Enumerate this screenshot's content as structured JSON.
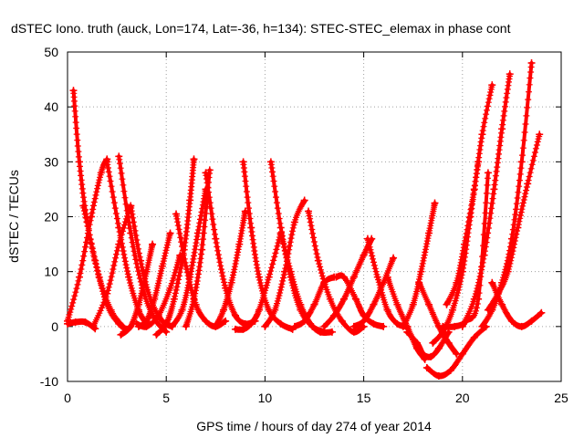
{
  "chart_data": {
    "type": "scatter",
    "title": "dSTEC Iono. truth (auck, Lon=174, Lat=-36, h=134): STEC-STEC_elemax in phase cont",
    "xlabel": "GPS time / hours of day 274 of year 2014",
    "ylabel": "dSTEC  / TECUs",
    "xlim": [
      0,
      25
    ],
    "ylim": [
      -10,
      50
    ],
    "xticks": [
      "0",
      "5",
      "10",
      "15",
      "20",
      "25"
    ],
    "yticks": [
      "-10",
      "0",
      "10",
      "20",
      "30",
      "40",
      "50"
    ],
    "grid": true,
    "marker": "+",
    "color": "#ff0000",
    "arcs": [
      {
        "x": [
          0.0,
          0.4,
          0.9,
          1.4
        ],
        "y": [
          0.5,
          0.8,
          0.8,
          -0.4
        ]
      },
      {
        "x": [
          0.3,
          0.6,
          1.0,
          1.6,
          2.2,
          2.8
        ],
        "y": [
          43,
          30,
          19,
          9,
          3,
          0
        ]
      },
      {
        "x": [
          0.0,
          0.6,
          1.2,
          1.7,
          2.0
        ],
        "y": [
          1,
          9,
          20,
          28,
          30.5
        ]
      },
      {
        "x": [
          0.8,
          1.4,
          2.0,
          2.6,
          3.0
        ],
        "y": [
          22,
          12,
          4,
          0.5,
          -0.5
        ]
      },
      {
        "x": [
          1.3,
          2.0,
          2.6,
          3.2
        ],
        "y": [
          0,
          6,
          15,
          22
        ]
      },
      {
        "x": [
          2.0,
          2.6,
          3.1,
          3.6,
          4.0
        ],
        "y": [
          30,
          18,
          9,
          3,
          0.5
        ]
      },
      {
        "x": [
          2.6,
          3.2,
          3.8,
          4.4,
          5.0
        ],
        "y": [
          31,
          17,
          7,
          1.5,
          -1
        ]
      },
      {
        "x": [
          2.7,
          3.2,
          3.6,
          4.0,
          4.3
        ],
        "y": [
          -1.5,
          0,
          4,
          10,
          15
        ]
      },
      {
        "x": [
          3.2,
          3.7,
          4.2,
          4.8,
          5.3
        ],
        "y": [
          22,
          12,
          5,
          1,
          0
        ]
      },
      {
        "x": [
          3.6,
          4.0,
          4.4,
          4.8,
          5.2
        ],
        "y": [
          0,
          1,
          5,
          11,
          17
        ]
      },
      {
        "x": [
          3.5,
          4.0,
          4.6,
          5.2,
          5.7
        ],
        "y": [
          0.5,
          0,
          2,
          7,
          13
        ]
      },
      {
        "x": [
          4.5,
          5.0,
          5.4,
          5.9,
          6.2,
          6.4
        ],
        "y": [
          -1.5,
          0.5,
          5,
          14,
          23,
          30.5
        ]
      },
      {
        "x": [
          5.5,
          6.0,
          6.5,
          7.0,
          7.5,
          8.0
        ],
        "y": [
          20.5,
          11,
          4,
          1,
          0,
          1
        ]
      },
      {
        "x": [
          5.3,
          5.8,
          6.2,
          6.6,
          7.0
        ],
        "y": [
          0,
          3,
          9,
          17,
          25
        ]
      },
      {
        "x": [
          6.0,
          6.4,
          6.8,
          7.2
        ],
        "y": [
          0,
          5,
          14,
          28.5
        ]
      },
      {
        "x": [
          7.0,
          7.5,
          8.0,
          8.5,
          9.0,
          9.5
        ],
        "y": [
          28,
          16,
          7,
          2,
          0.5,
          1
        ]
      },
      {
        "x": [
          7.5,
          7.9,
          8.3,
          8.7,
          9.0
        ],
        "y": [
          0,
          3,
          8,
          15,
          21
        ]
      },
      {
        "x": [
          8.5,
          8.9,
          9.3,
          9.7,
          10.2,
          10.8
        ],
        "y": [
          -0.5,
          -0.5,
          0.5,
          3,
          9,
          17
        ]
      },
      {
        "x": [
          8.9,
          9.3,
          9.7,
          10.2,
          10.8,
          11.4
        ],
        "y": [
          30,
          18,
          9,
          3,
          0.5,
          -0.5
        ]
      },
      {
        "x": [
          10.0,
          10.5,
          11.0,
          11.5,
          12.0
        ],
        "y": [
          0,
          3,
          10,
          19,
          23
        ]
      },
      {
        "x": [
          10.3,
          10.8,
          11.3,
          11.8,
          12.4,
          13.0
        ],
        "y": [
          30,
          18,
          9,
          3,
          0,
          -1
        ]
      },
      {
        "x": [
          10.8,
          11.3,
          11.8,
          12.3,
          12.8,
          13.4
        ],
        "y": [
          17,
          10,
          4,
          0.5,
          -1,
          -1
        ]
      },
      {
        "x": [
          11.5,
          12.0,
          12.5,
          13.0,
          13.5
        ],
        "y": [
          0,
          1,
          4,
          8,
          9
        ]
      },
      {
        "x": [
          12.2,
          12.7,
          13.3,
          13.9,
          14.5,
          15.0
        ],
        "y": [
          21,
          12,
          5,
          1,
          -1,
          0
        ]
      },
      {
        "x": [
          13.0,
          13.5,
          14.0,
          14.5,
          15.0,
          15.4
        ],
        "y": [
          0,
          2,
          5,
          9,
          13,
          16
        ]
      },
      {
        "x": [
          13.6,
          14.0,
          14.6,
          15.0,
          15.5,
          16.0
        ],
        "y": [
          9,
          9,
          5,
          2,
          0.5,
          0
        ]
      },
      {
        "x": [
          14.5,
          15.0,
          15.5,
          16.0,
          16.5
        ],
        "y": [
          0,
          1,
          4,
          8,
          12.5
        ]
      },
      {
        "x": [
          15.2,
          15.7,
          16.2,
          16.7,
          17.2
        ],
        "y": [
          16,
          9,
          3,
          0.5,
          0
        ]
      },
      {
        "x": [
          16.2,
          16.7,
          17.2,
          17.7,
          18.1
        ],
        "y": [
          9,
          4,
          0,
          -4,
          -6
        ]
      },
      {
        "x": [
          17.0,
          17.5,
          17.9,
          18.3,
          18.6
        ],
        "y": [
          0,
          4,
          10,
          17,
          22.5
        ]
      },
      {
        "x": [
          17.8,
          18.3,
          18.8,
          19.3,
          19.7
        ],
        "y": [
          8,
          4,
          0,
          -3,
          -5
        ]
      },
      {
        "x": [
          17.2,
          17.7,
          18.0,
          18.4,
          18.8,
          19.3
        ],
        "y": [
          -1,
          -3,
          -5,
          -5.5,
          -4,
          -1
        ]
      },
      {
        "x": [
          18.2,
          18.8,
          19.4,
          20.0,
          20.6,
          21.2
        ],
        "y": [
          -7.5,
          -9,
          -8,
          -5,
          -2,
          0
        ]
      },
      {
        "x": [
          18.5,
          19.0,
          19.5,
          20.0,
          20.4,
          20.8
        ],
        "y": [
          -3,
          -1,
          3,
          10,
          20,
          30
        ]
      },
      {
        "x": [
          19.2,
          19.7,
          20.1,
          20.6,
          21.0,
          21.5
        ],
        "y": [
          4,
          8,
          15,
          25,
          35,
          44
        ]
      },
      {
        "x": [
          20.0,
          20.6,
          21.1,
          21.6,
          22.0,
          22.4
        ],
        "y": [
          0,
          5,
          13,
          25,
          36,
          46
        ]
      },
      {
        "x": [
          19.0,
          19.6,
          20.2,
          20.8,
          21.3
        ],
        "y": [
          0,
          0,
          1,
          5,
          28
        ]
      },
      {
        "x": [
          21.0,
          21.5,
          22.0,
          22.5,
          23.0,
          23.5
        ],
        "y": [
          0,
          3,
          8,
          16,
          30,
          48
        ]
      },
      {
        "x": [
          21.3,
          21.8,
          22.3,
          22.8,
          23.3,
          23.9
        ],
        "y": [
          3,
          6,
          10,
          18,
          26,
          35
        ]
      },
      {
        "x": [
          21.5,
          22.0,
          22.5,
          23.0,
          23.5,
          24.0
        ],
        "y": [
          8,
          4,
          1,
          0,
          1,
          2.5
        ]
      }
    ]
  }
}
